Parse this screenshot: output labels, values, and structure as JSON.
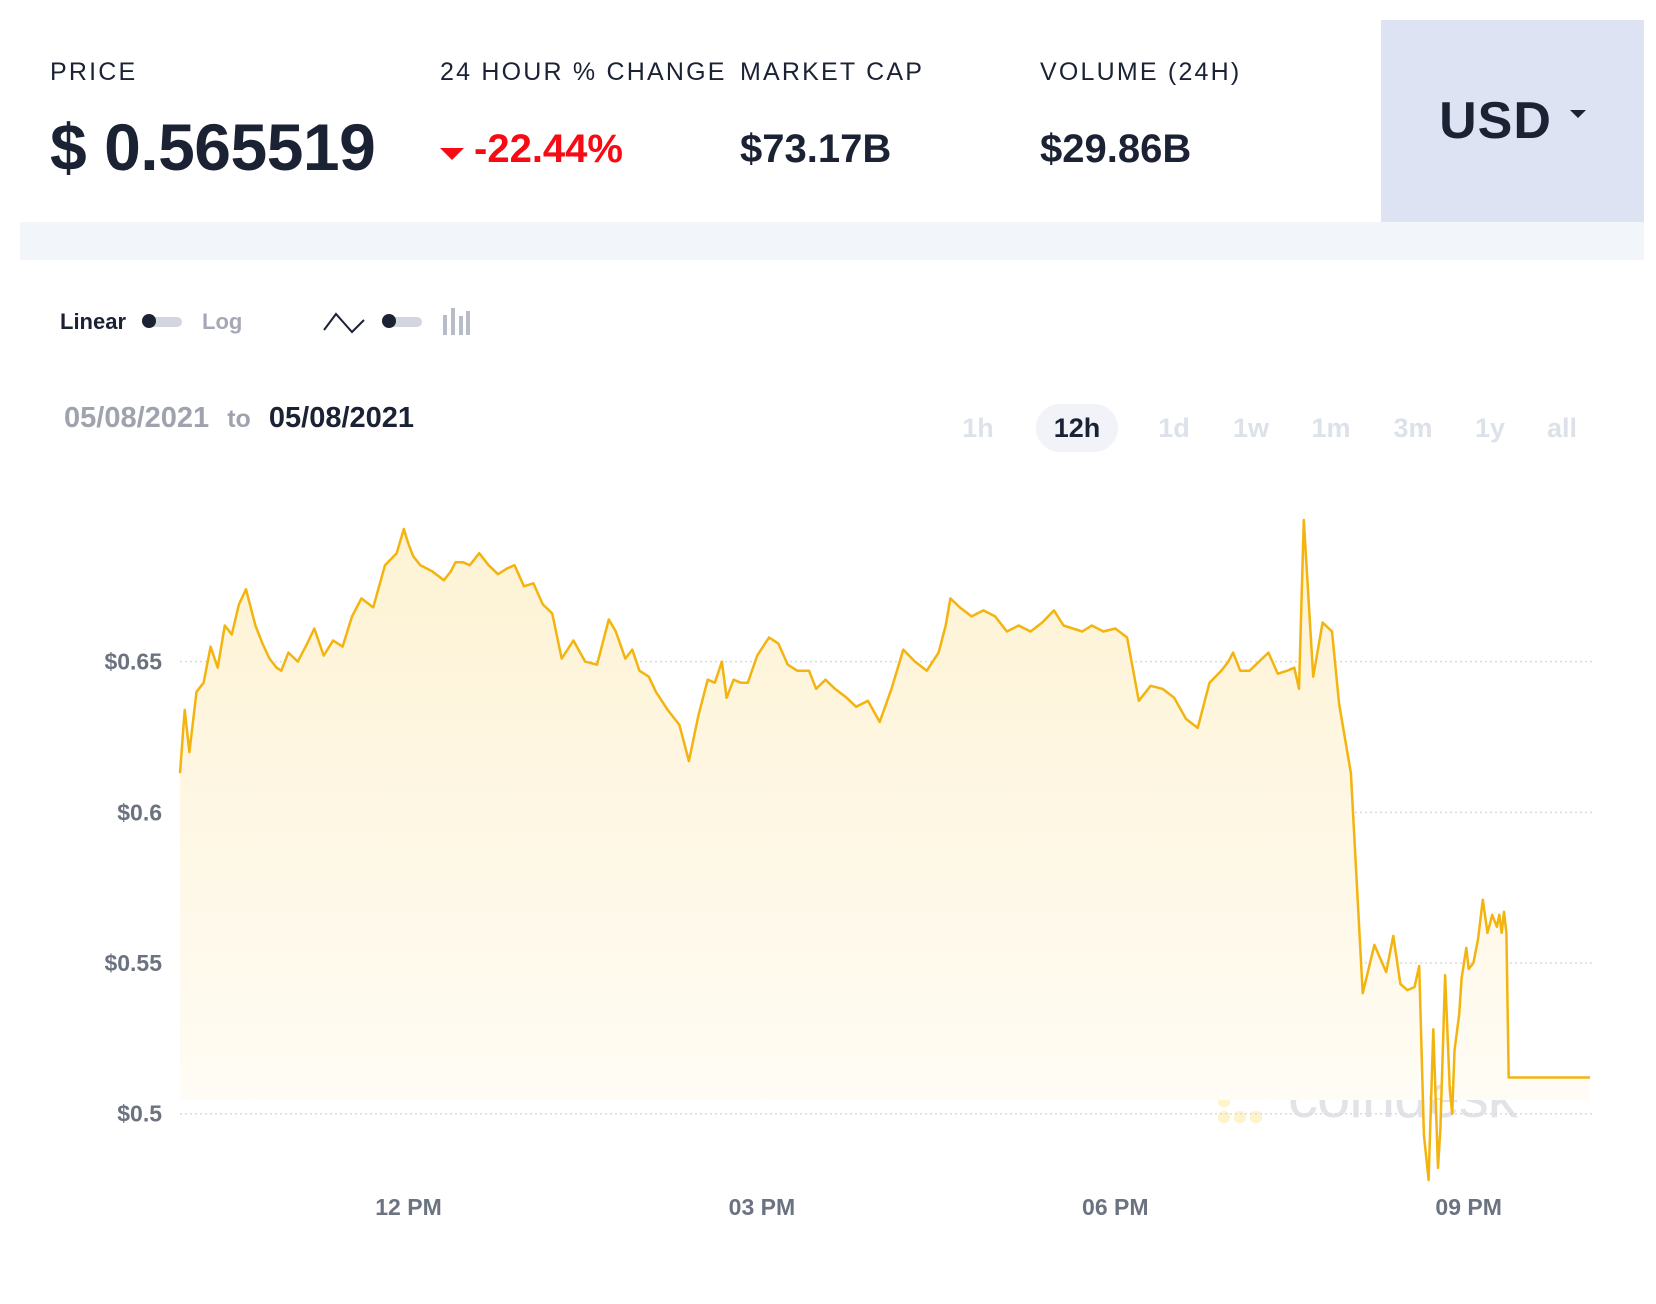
{
  "stats": {
    "price_label": "PRICE",
    "price_symbol": "$",
    "price_value": "0.565519",
    "change_label": "24 HOUR % CHANGE",
    "change_value": "-22.44%",
    "mcap_label": "MARKET CAP",
    "mcap_value": "$73.17B",
    "volume_label": "VOLUME (24H)",
    "volume_value": "$29.86B",
    "change_color": "#f70a13"
  },
  "currency": {
    "selected": "USD",
    "icon": "chevron-down-icon"
  },
  "scale_toggle": {
    "left_label": "Linear",
    "right_label": "Log",
    "selected": "Linear"
  },
  "chart_style_toggle": {
    "left_icon": "line-chart-icon",
    "right_icon": "bar-chart-icon",
    "selected": "line"
  },
  "date_range": {
    "from": "05/08/2021",
    "to_word": "to",
    "to": "05/08/2021"
  },
  "timeframes": {
    "items": [
      "1h",
      "12h",
      "1d",
      "1w",
      "1m",
      "3m",
      "1y",
      "all"
    ],
    "selected": "12h"
  },
  "watermark": {
    "text": "coindesk",
    "icon": "coindesk-logo-icon"
  },
  "chart_data": {
    "type": "area",
    "xlabel": "",
    "ylabel": "",
    "ylim": [
      0.478,
      0.697
    ],
    "yticks": [
      0.5,
      0.55,
      0.6,
      0.65
    ],
    "ytick_labels": [
      "$0.5",
      "$0.55",
      "$0.6",
      "$0.65"
    ],
    "xticks": [
      12,
      15,
      18,
      21
    ],
    "xtick_labels": [
      "12 PM",
      "03 PM",
      "06 PM",
      "09 PM"
    ],
    "xlim": [
      10.06,
      22.03
    ],
    "line_color": "#f4b40f",
    "grid": "horizontal dotted",
    "series": [
      {
        "x": [
          10.06,
          10.1,
          10.14,
          10.2,
          10.26,
          10.32,
          10.38,
          10.44,
          10.5,
          10.56,
          10.62,
          10.7,
          10.76,
          10.82,
          10.88,
          10.92,
          10.98,
          11.06,
          11.14,
          11.2,
          11.28,
          11.36,
          11.44,
          11.52,
          11.6,
          11.7,
          11.8,
          11.9,
          11.96,
          12.0,
          12.04,
          12.1,
          12.2,
          12.3,
          12.36,
          12.4,
          12.46,
          12.52,
          12.6,
          12.68,
          12.76,
          12.84,
          12.9,
          12.98,
          13.06,
          13.14,
          13.22,
          13.3,
          13.4,
          13.5,
          13.6,
          13.7,
          13.76,
          13.84,
          13.9,
          13.96,
          14.04,
          14.1,
          14.2,
          14.3,
          14.38,
          14.46,
          14.54,
          14.6,
          14.66,
          14.7,
          14.76,
          14.82,
          14.88,
          14.96,
          15.06,
          15.14,
          15.22,
          15.3,
          15.4,
          15.46,
          15.54,
          15.62,
          15.72,
          15.8,
          15.9,
          16.0,
          16.1,
          16.2,
          16.3,
          16.4,
          16.5,
          16.56,
          16.6,
          16.68,
          16.78,
          16.88,
          16.98,
          17.08,
          17.18,
          17.28,
          17.38,
          17.48,
          17.56,
          17.64,
          17.72,
          17.8,
          17.9,
          18.0,
          18.1,
          18.2,
          18.3,
          18.4,
          18.5,
          18.6,
          18.7,
          18.8,
          18.9,
          18.96,
          19.0,
          19.06,
          19.14,
          19.22,
          19.3,
          19.38,
          19.46,
          19.52,
          19.56,
          19.6,
          19.68,
          19.76,
          19.84,
          19.9,
          20.0,
          20.1,
          20.2,
          20.3,
          20.36,
          20.42,
          20.48,
          20.54,
          20.58,
          20.62,
          20.66,
          20.7,
          20.74,
          20.76,
          20.8,
          20.84,
          20.86,
          20.88,
          20.92,
          20.94,
          20.98,
          21.0,
          21.04,
          21.08,
          21.12,
          21.16,
          21.2,
          21.24,
          21.26,
          21.28,
          21.3,
          21.32,
          21.34,
          21.38,
          21.42,
          21.46,
          21.5,
          21.54,
          21.58,
          21.62,
          21.66,
          21.7,
          21.74,
          21.78,
          21.82,
          21.86,
          21.9,
          21.93,
          21.96,
          22.0,
          22.03
        ],
        "y": [
          0.613,
          0.634,
          0.62,
          0.64,
          0.643,
          0.655,
          0.648,
          0.662,
          0.659,
          0.669,
          0.674,
          0.662,
          0.656,
          0.651,
          0.648,
          0.647,
          0.653,
          0.65,
          0.656,
          0.661,
          0.652,
          0.657,
          0.655,
          0.665,
          0.671,
          0.668,
          0.682,
          0.686,
          0.694,
          0.689,
          0.685,
          0.682,
          0.68,
          0.677,
          0.68,
          0.683,
          0.683,
          0.682,
          0.686,
          0.682,
          0.679,
          0.681,
          0.682,
          0.675,
          0.676,
          0.669,
          0.666,
          0.651,
          0.657,
          0.65,
          0.649,
          0.664,
          0.66,
          0.651,
          0.654,
          0.647,
          0.645,
          0.64,
          0.634,
          0.629,
          0.617,
          0.632,
          0.644,
          0.643,
          0.65,
          0.638,
          0.644,
          0.643,
          0.643,
          0.652,
          0.658,
          0.656,
          0.649,
          0.647,
          0.647,
          0.641,
          0.644,
          0.641,
          0.638,
          0.635,
          0.637,
          0.63,
          0.641,
          0.654,
          0.65,
          0.647,
          0.653,
          0.662,
          0.671,
          0.668,
          0.665,
          0.667,
          0.665,
          0.66,
          0.662,
          0.66,
          0.663,
          0.667,
          0.662,
          0.661,
          0.66,
          0.662,
          0.66,
          0.661,
          0.658,
          0.637,
          0.642,
          0.641,
          0.638,
          0.631,
          0.628,
          0.643,
          0.647,
          0.65,
          0.653,
          0.647,
          0.647,
          0.65,
          0.653,
          0.646,
          0.647,
          0.648,
          0.641,
          0.697,
          0.645,
          0.663,
          0.66,
          0.636,
          0.613,
          0.54,
          0.556,
          0.547,
          0.559,
          0.543,
          0.541,
          0.542,
          0.549,
          0.493,
          0.478,
          0.528,
          0.482,
          0.495,
          0.546,
          0.508,
          0.5,
          0.521,
          0.533,
          0.545,
          0.555,
          0.548,
          0.55,
          0.558,
          0.571,
          0.56,
          0.566,
          0.562,
          0.566,
          0.56,
          0.567,
          0.56,
          0.512,
          0.512,
          0.512,
          0.512,
          0.512,
          0.512,
          0.512,
          0.512,
          0.512,
          0.512,
          0.512,
          0.512,
          0.512,
          0.512,
          0.512,
          0.512,
          0.512,
          0.512,
          0.512
        ]
      }
    ]
  }
}
